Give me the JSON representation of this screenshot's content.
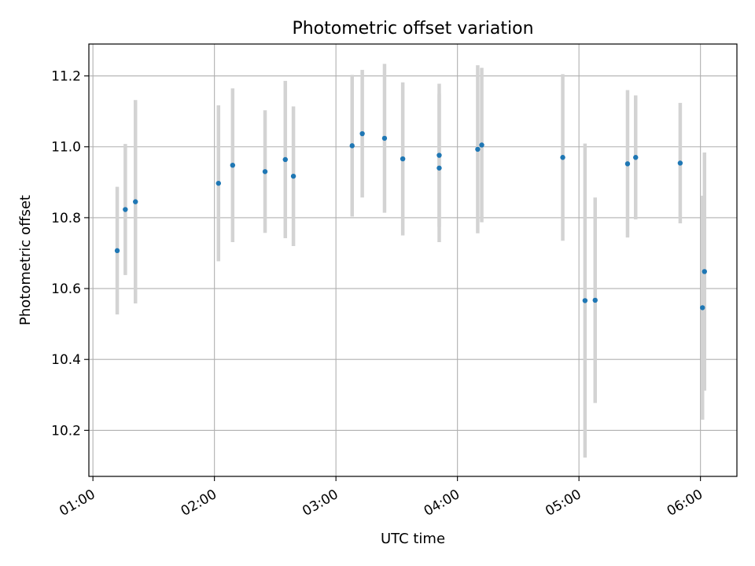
{
  "chart_data": {
    "type": "scatter",
    "title": "Photometric offset variation",
    "xlabel": "UTC time",
    "ylabel": "Photometric offset",
    "x_axis_kind": "time",
    "xlim": [
      "00:58",
      "06:18"
    ],
    "ylim": [
      10.07,
      11.29
    ],
    "grid": true,
    "x_ticks": [
      "01:00",
      "02:00",
      "03:00",
      "04:00",
      "05:00",
      "06:00"
    ],
    "y_ticks": [
      "10.2",
      "10.4",
      "10.6",
      "10.8",
      "11.0",
      "11.2"
    ],
    "colors": {
      "points": "#1f77b4",
      "errorbars": "#d3d3d3",
      "grid": "#b0b0b0",
      "axes": "#000000"
    },
    "series": [
      {
        "points": [
          {
            "t": "01:12",
            "y": 10.707,
            "err": 0.18
          },
          {
            "t": "01:16",
            "y": 10.823,
            "err": 0.185
          },
          {
            "t": "01:21",
            "y": 10.845,
            "err": 0.287
          },
          {
            "t": "02:02",
            "y": 10.897,
            "err": 0.22
          },
          {
            "t": "02:09",
            "y": 10.948,
            "err": 0.217
          },
          {
            "t": "02:25",
            "y": 10.93,
            "err": 0.173
          },
          {
            "t": "02:35",
            "y": 10.964,
            "err": 0.222
          },
          {
            "t": "02:39",
            "y": 10.917,
            "err": 0.197
          },
          {
            "t": "03:08",
            "y": 11.003,
            "err": 0.2
          },
          {
            "t": "03:13",
            "y": 11.037,
            "err": 0.18
          },
          {
            "t": "03:24",
            "y": 11.024,
            "err": 0.21
          },
          {
            "t": "03:33",
            "y": 10.966,
            "err": 0.216
          },
          {
            "t": "03:51",
            "y": 10.976,
            "err": 0.202
          },
          {
            "t": "03:51",
            "y": 10.94,
            "err": 0.209
          },
          {
            "t": "04:10",
            "y": 10.993,
            "err": 0.237
          },
          {
            "t": "04:12",
            "y": 11.005,
            "err": 0.218
          },
          {
            "t": "04:52",
            "y": 10.97,
            "err": 0.235
          },
          {
            "t": "05:03",
            "y": 10.566,
            "err": 0.443
          },
          {
            "t": "05:08",
            "y": 10.567,
            "err": 0.29
          },
          {
            "t": "05:24",
            "y": 10.952,
            "err": 0.208
          },
          {
            "t": "05:28",
            "y": 10.97,
            "err": 0.175
          },
          {
            "t": "05:50",
            "y": 10.954,
            "err": 0.17
          },
          {
            "t": "06:01",
            "y": 10.546,
            "err": 0.316
          },
          {
            "t": "06:02",
            "y": 10.648,
            "err": 0.336
          }
        ]
      }
    ]
  }
}
